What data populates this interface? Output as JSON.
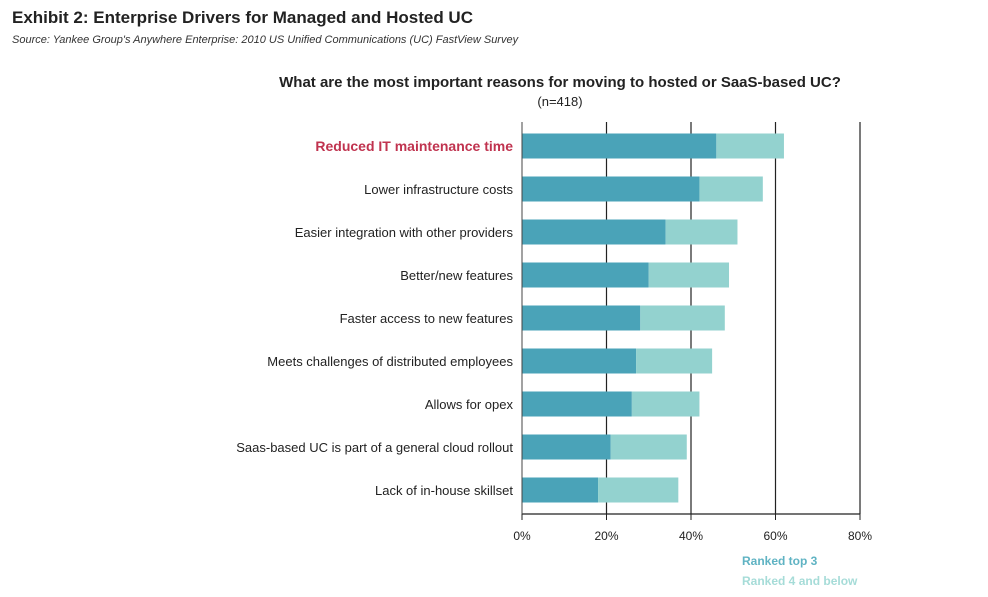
{
  "header": {
    "exhibit_title": "Exhibit 2: Enterprise Drivers for Managed and Hosted UC",
    "source": "Source: Yankee Group's Anywhere Enterprise: 2010 US Unified Communications (UC) FastView Survey"
  },
  "colors": {
    "top3": "#4aa3b8",
    "rest": "#93d2cf",
    "highlight": "#c0334f",
    "legend_top3": "#5fb3c3",
    "legend_rest": "#a6dcd8"
  },
  "chart_data": {
    "type": "bar",
    "orientation": "horizontal",
    "stacked": true,
    "title": "What are the most important reasons for moving to hosted or SaaS-based UC?",
    "subtitle": "(n=418)",
    "categories": [
      "Reduced IT maintenance time",
      "Lower infrastructure costs",
      "Easier integration with other providers",
      "Better/new features",
      "Faster access to new features",
      "Meets challenges of distributed employees",
      "Allows for opex",
      "Saas-based UC is part of a general cloud rollout",
      "Lack of in-house skillset"
    ],
    "highlight_category": "Reduced IT maintenance time",
    "series": [
      {
        "name": "Ranked top 3",
        "values": [
          46,
          42,
          34,
          30,
          28,
          27,
          26,
          21,
          18
        ]
      },
      {
        "name": "Ranked 4 and below",
        "values": [
          16,
          15,
          17,
          19,
          20,
          18,
          16,
          18,
          19
        ]
      }
    ],
    "xlim": [
      0,
      80
    ],
    "xticks": [
      0,
      20,
      40,
      60,
      80
    ],
    "xtick_labels": [
      "0%",
      "20%",
      "40%",
      "60%",
      "80%"
    ],
    "grid": "vertical",
    "legend": "bottom-right"
  }
}
